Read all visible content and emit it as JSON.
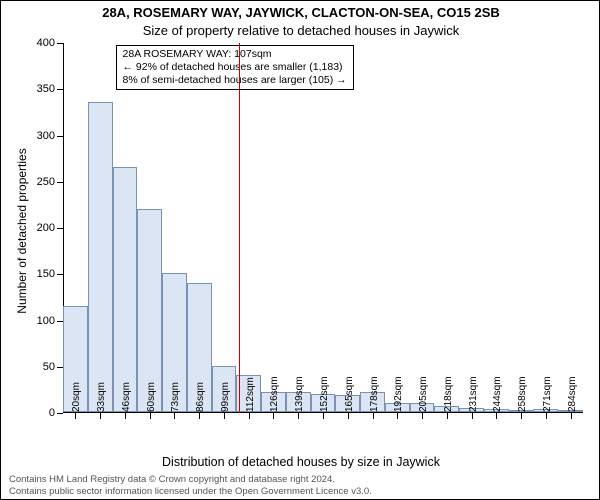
{
  "chart": {
    "type": "histogram",
    "title_line1": "28A, ROSEMARY WAY, JAYWICK, CLACTON-ON-SEA, CO15 2SB",
    "title_line2": "Size of property relative to detached houses in Jaywick",
    "title_fontsize": 13,
    "ylabel": "Number of detached properties",
    "xlabel": "Distribution of detached houses by size in Jaywick",
    "label_fontsize": 12,
    "background_color": "#ffffff",
    "bar_fill": "#dbe5f3",
    "bar_border": "#7a93b5",
    "axis_color": "#000000",
    "refline_color": "#cc0000",
    "refline_x": 107,
    "ylim_max": 400,
    "ytick_step": 50,
    "yticks": [
      0,
      50,
      100,
      150,
      200,
      250,
      300,
      350,
      400
    ],
    "xtick_labels": [
      "20sqm",
      "33sqm",
      "46sqm",
      "60sqm",
      "73sqm",
      "86sqm",
      "99sqm",
      "112sqm",
      "126sqm",
      "139sqm",
      "152sqm",
      "165sqm",
      "178sqm",
      "192sqm",
      "205sqm",
      "218sqm",
      "231sqm",
      "244sqm",
      "258sqm",
      "271sqm",
      "284sqm"
    ],
    "n_bars": 21,
    "values": [
      115,
      335,
      265,
      220,
      150,
      140,
      50,
      40,
      22,
      22,
      20,
      18,
      22,
      10,
      10,
      6,
      4,
      3,
      2,
      3,
      2
    ],
    "bar_width_ratio": 1.0,
    "annotation": {
      "line1": "28A ROSEMARY WAY: 107sqm",
      "line2": "← 92% of detached houses are smaller (1,183)",
      "line3": "8% of semi-detached houses are larger (105) →",
      "box_border": "#000000",
      "box_bg": "#ffffff",
      "fontsize": 10.5
    },
    "footer_line1": "Contains HM Land Registry data © Crown copyright and database right 2024.",
    "footer_line2": "Contains public sector information licensed under the Open Government Licence v3.0.",
    "footer_color": "#555555",
    "footer_fontsize": 9.5
  }
}
